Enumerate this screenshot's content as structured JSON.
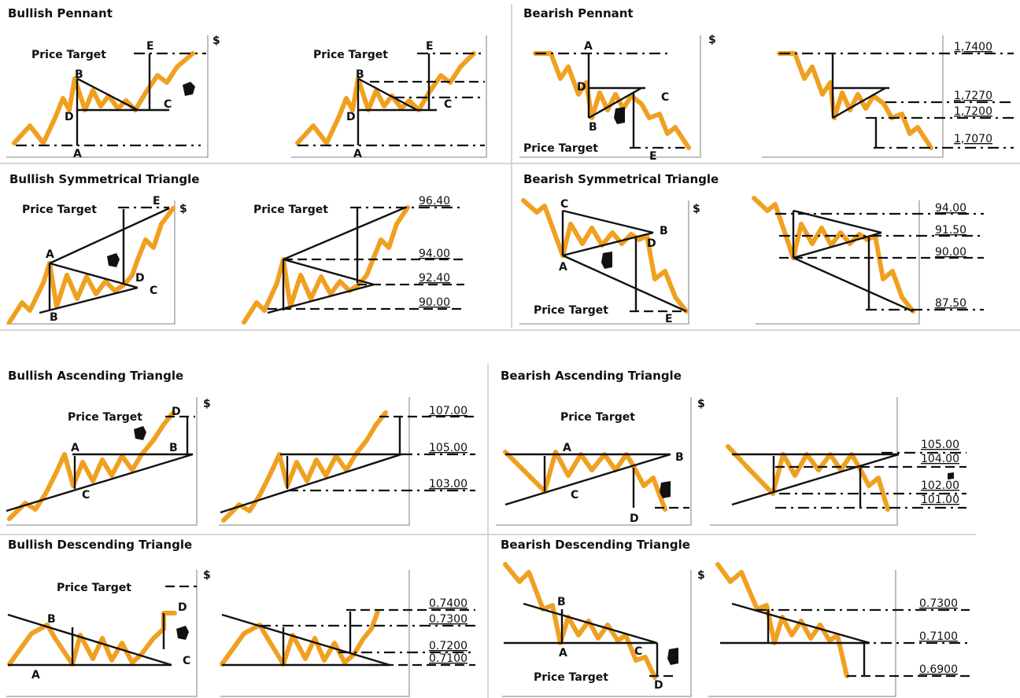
{
  "headings": {
    "bullish_pennant": "Bullish Pennant",
    "bearish_pennant": "Bearish Pennant",
    "bullish_sym": "Bullish Symmetrical Triangle",
    "bearish_sym": "Bearish Symmetrical Triangle",
    "bullish_asc": "Bullish Ascending Triangle",
    "bearish_asc": "Bearish Ascending Triangle",
    "bullish_desc": "Bullish Descending Triangle",
    "bearish_desc": "Bearish Descending Triangle"
  },
  "labels": {
    "price_target": "Price Target",
    "dollar": "$",
    "A": "A",
    "B": "B",
    "C": "C",
    "D": "D",
    "E": "E"
  },
  "price_levels": {
    "bearish_pennant": [
      "1,7400",
      "1,7270",
      "1,7200",
      "1,7070"
    ],
    "bearish_sym": [
      "94.00",
      "91.50",
      "90.00",
      "87.50"
    ],
    "bullish_sym": [
      "96.40",
      "94.00",
      "92.40",
      "90.00"
    ],
    "bullish_asc": [
      "107.00",
      "105.00",
      "103.00"
    ],
    "bearish_asc": [
      "105.00",
      "104.00",
      "102.00",
      "101.00"
    ],
    "bullish_desc": [
      "0.7400",
      "0.7300",
      "0.7200",
      "0.7100"
    ],
    "bearish_desc": [
      "0.7300",
      "0.7100",
      "0.6900"
    ]
  },
  "icons": {
    "hand": "pointing-hand-icon"
  },
  "colors": {
    "price_line": "#f0a020",
    "pattern_line": "#111111",
    "divider": "#c8c8c8"
  }
}
